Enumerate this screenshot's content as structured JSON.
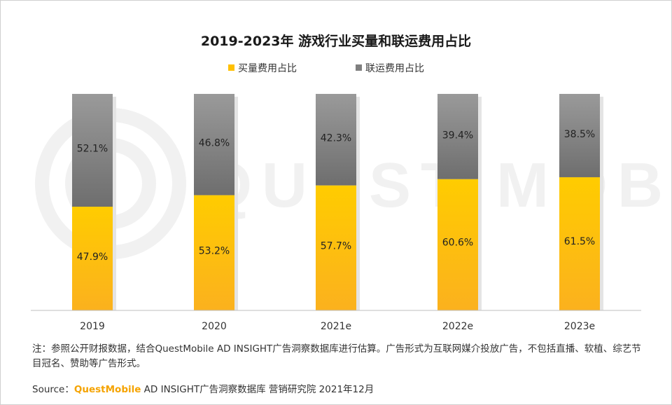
{
  "chart_data": {
    "type": "bar",
    "stacked": true,
    "percent": true,
    "title": "2019-2023年 游戏行业买量和联运费用占比",
    "categories": [
      "2019",
      "2020",
      "2021e",
      "2022e",
      "2023e"
    ],
    "series": [
      {
        "name": "买量费用占比",
        "values": [
          47.9,
          53.2,
          57.7,
          60.6,
          61.5
        ],
        "labels": [
          "47.9%",
          "53.2%",
          "57.7%",
          "60.6%",
          "61.5%"
        ],
        "color": "#ffc000"
      },
      {
        "name": "联运费用占比",
        "values": [
          52.1,
          46.8,
          42.3,
          39.4,
          38.5
        ],
        "labels": [
          "52.1%",
          "46.8%",
          "42.3%",
          "39.4%",
          "38.5%"
        ],
        "color": "#7f7f7f"
      }
    ],
    "ylim": [
      0,
      100
    ],
    "xlabel": "",
    "ylabel": "",
    "legend": "top-center"
  },
  "note": "注：参照公开财报数据，结合QuestMobile AD INSIGHT广告洞察数据库进行估算。广告形式为互联网媒介投放广告，不包括直播、软植、综艺节目冠名、赞助等广告形式。",
  "source": {
    "prefix": "Source：",
    "brand": "QuestMobile",
    "rest": " AD INSIGHT广告洞察数据库  营销研究院 2021年12月"
  },
  "watermark_text": "QUEST MOBILE",
  "colors": {
    "accent": "#ffc000",
    "gray": "#7f7f7f",
    "brand": "#f5a300"
  }
}
